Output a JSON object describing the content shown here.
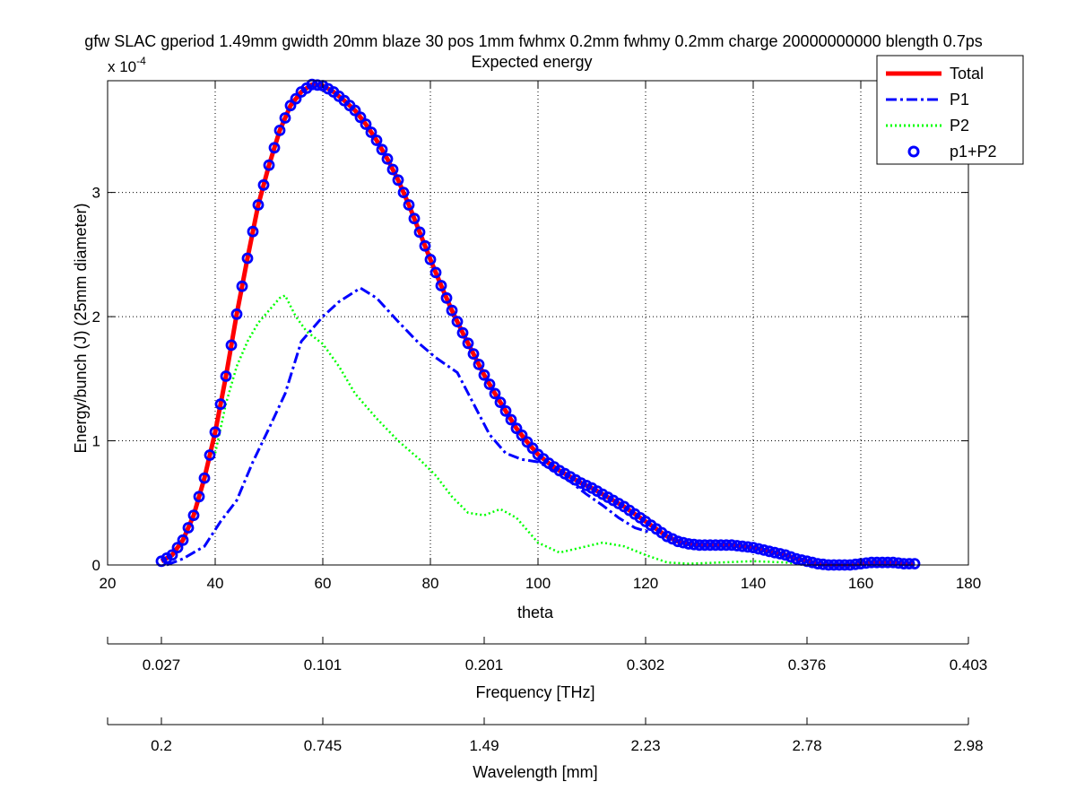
{
  "chart_data": {
    "type": "line",
    "title": "gfw SLAC gperiod 1.49mm gwidth 20mm blaze 30 pos 1mm fwhmx 0.2mm fwhmy 0.2mm charge 20000000000 blength 0.7ps",
    "subtitle": "Expected energy",
    "xlabel": "theta",
    "ylabel": "Energy/bunch (J) (25mm diameter)",
    "y_multiplier": "x 10",
    "y_multiplier_exponent": "-4",
    "xlim": [
      20,
      180
    ],
    "ylim": [
      0,
      3.9
    ],
    "x_ticks": [
      "20",
      "40",
      "60",
      "80",
      "100",
      "120",
      "140",
      "160",
      "180"
    ],
    "y_ticks": [
      "0",
      "1",
      "2",
      "3"
    ],
    "grid": true,
    "legend_position": "top-right",
    "series": [
      {
        "name": "Total",
        "color": "#ff0000",
        "style": "solid",
        "points": [
          [
            30,
            0.03
          ],
          [
            32,
            0.08
          ],
          [
            34,
            0.2
          ],
          [
            36,
            0.4
          ],
          [
            38,
            0.7
          ],
          [
            40,
            1.07
          ],
          [
            42,
            1.52
          ],
          [
            44,
            2.02
          ],
          [
            46,
            2.47
          ],
          [
            48,
            2.9
          ],
          [
            50,
            3.22
          ],
          [
            52,
            3.5
          ],
          [
            54,
            3.7
          ],
          [
            56,
            3.81
          ],
          [
            58,
            3.87
          ],
          [
            60,
            3.86
          ],
          [
            62,
            3.81
          ],
          [
            64,
            3.74
          ],
          [
            66,
            3.66
          ],
          [
            68,
            3.55
          ],
          [
            70,
            3.42
          ],
          [
            72,
            3.27
          ],
          [
            74,
            3.1
          ],
          [
            76,
            2.9
          ],
          [
            78,
            2.68
          ],
          [
            80,
            2.46
          ],
          [
            82,
            2.25
          ],
          [
            84,
            2.05
          ],
          [
            86,
            1.87
          ],
          [
            88,
            1.7
          ],
          [
            90,
            1.53
          ],
          [
            92,
            1.38
          ],
          [
            94,
            1.24
          ],
          [
            96,
            1.1
          ],
          [
            98,
            0.99
          ],
          [
            100,
            0.89
          ],
          [
            102,
            0.82
          ],
          [
            104,
            0.76
          ],
          [
            106,
            0.71
          ],
          [
            108,
            0.66
          ],
          [
            110,
            0.62
          ],
          [
            112,
            0.57
          ],
          [
            114,
            0.52
          ],
          [
            116,
            0.47
          ],
          [
            118,
            0.41
          ],
          [
            120,
            0.35
          ],
          [
            122,
            0.29
          ],
          [
            124,
            0.23
          ],
          [
            126,
            0.19
          ],
          [
            128,
            0.17
          ],
          [
            130,
            0.16
          ],
          [
            132,
            0.16
          ],
          [
            134,
            0.16
          ],
          [
            136,
            0.16
          ],
          [
            138,
            0.15
          ],
          [
            140,
            0.14
          ],
          [
            142,
            0.12
          ],
          [
            144,
            0.1
          ],
          [
            146,
            0.08
          ],
          [
            148,
            0.05
          ],
          [
            150,
            0.03
          ],
          [
            152,
            0.01
          ],
          [
            154,
            0.0
          ],
          [
            156,
            0.0
          ],
          [
            158,
            0.0
          ],
          [
            160,
            0.01
          ],
          [
            162,
            0.02
          ],
          [
            164,
            0.02
          ],
          [
            166,
            0.02
          ],
          [
            168,
            0.01
          ],
          [
            170,
            0.01
          ]
        ]
      },
      {
        "name": "P1",
        "color": "#0000ff",
        "style": "dashdot",
        "points": [
          [
            31,
            0.0
          ],
          [
            34,
            0.05
          ],
          [
            38,
            0.15
          ],
          [
            41,
            0.35
          ],
          [
            44,
            0.52
          ],
          [
            47,
            0.83
          ],
          [
            50,
            1.1
          ],
          [
            53,
            1.38
          ],
          [
            56,
            1.8
          ],
          [
            60,
            2.0
          ],
          [
            63,
            2.12
          ],
          [
            67,
            2.23
          ],
          [
            70,
            2.15
          ],
          [
            74,
            1.96
          ],
          [
            78,
            1.78
          ],
          [
            81,
            1.67
          ],
          [
            85,
            1.55
          ],
          [
            88,
            1.3
          ],
          [
            91,
            1.05
          ],
          [
            94,
            0.9
          ],
          [
            97,
            0.85
          ],
          [
            100,
            0.83
          ],
          [
            103,
            0.76
          ],
          [
            106,
            0.67
          ],
          [
            109,
            0.57
          ],
          [
            112,
            0.48
          ],
          [
            115,
            0.38
          ],
          [
            118,
            0.3
          ],
          [
            121,
            0.26
          ]
        ]
      },
      {
        "name": "P2",
        "color": "#00ff00",
        "style": "dotted",
        "points": [
          [
            40,
            0.9
          ],
          [
            42,
            1.3
          ],
          [
            44,
            1.6
          ],
          [
            46,
            1.8
          ],
          [
            48,
            1.95
          ],
          [
            50,
            2.05
          ],
          [
            52,
            2.15
          ],
          [
            53,
            2.17
          ],
          [
            55,
            2.0
          ],
          [
            57,
            1.88
          ],
          [
            60,
            1.78
          ],
          [
            63,
            1.6
          ],
          [
            66,
            1.38
          ],
          [
            70,
            1.18
          ],
          [
            74,
            1.0
          ],
          [
            78,
            0.85
          ],
          [
            81,
            0.72
          ],
          [
            84,
            0.55
          ],
          [
            87,
            0.42
          ],
          [
            90,
            0.4
          ],
          [
            93,
            0.45
          ],
          [
            96,
            0.38
          ],
          [
            100,
            0.18
          ],
          [
            104,
            0.1
          ],
          [
            108,
            0.14
          ],
          [
            112,
            0.18
          ],
          [
            116,
            0.15
          ],
          [
            120,
            0.08
          ],
          [
            124,
            0.02
          ],
          [
            128,
            0.01
          ],
          [
            134,
            0.02
          ],
          [
            140,
            0.03
          ],
          [
            146,
            0.02
          ],
          [
            150,
            0.0
          ]
        ]
      },
      {
        "name": "p1+P2",
        "color": "#0000ff",
        "style": "markers",
        "x_start": 30,
        "x_end": 170,
        "x_step": 1,
        "follows": "Total"
      }
    ],
    "secondary_axes": [
      {
        "label": "Frequency [THz]",
        "tick_positions": [
          30,
          60,
          90,
          120,
          150,
          180
        ],
        "tick_labels": [
          "0.027",
          "0.101",
          "0.201",
          "0.302",
          "0.376",
          "0.403"
        ]
      },
      {
        "label": "Wavelength [mm]",
        "tick_positions": [
          30,
          60,
          90,
          120,
          150,
          180
        ],
        "tick_labels": [
          "0.2",
          "0.745",
          "1.49",
          "2.23",
          "2.78",
          "2.98"
        ]
      }
    ]
  }
}
